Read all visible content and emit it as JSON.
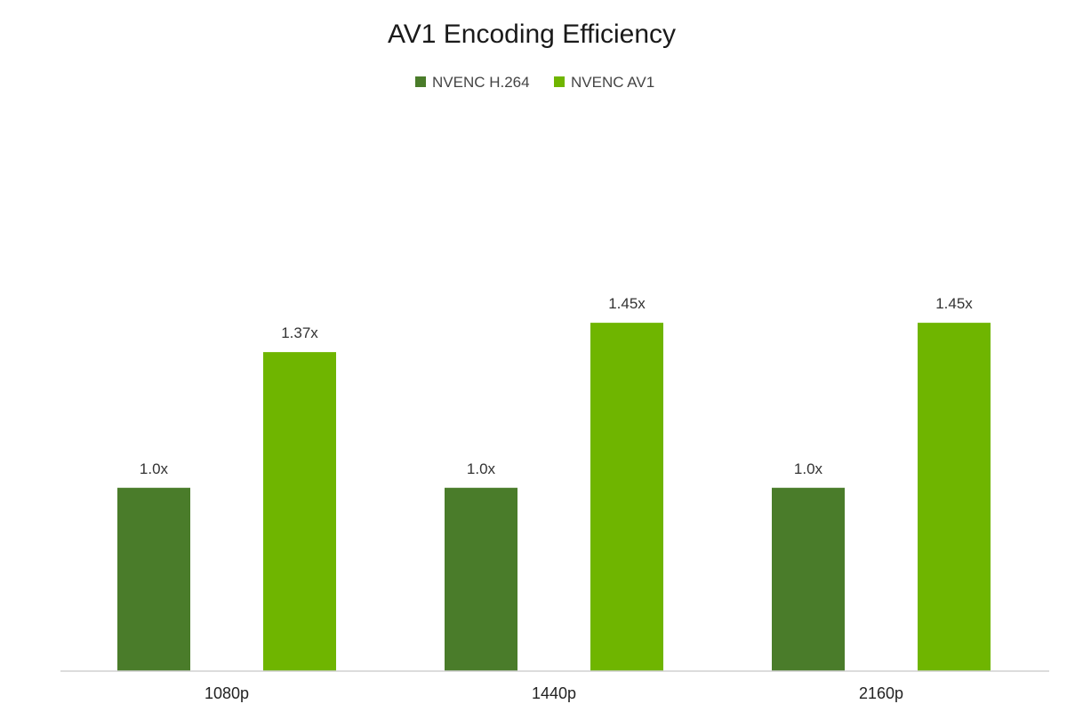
{
  "chart_data": {
    "type": "bar",
    "title": "AV1 Encoding Efficiency",
    "xlabel": "",
    "ylabel": "",
    "categories": [
      "1080p",
      "1440p",
      "2160p"
    ],
    "series": [
      {
        "name": "NVENC H.264",
        "color": "#4a7c2a",
        "values": [
          1.0,
          1.0,
          1.0
        ],
        "labels": [
          "1.0x",
          "1.0x",
          "1.0x"
        ]
      },
      {
        "name": "NVENC AV1",
        "color": "#6fb500",
        "values": [
          1.37,
          1.45,
          1.45
        ],
        "labels": [
          "1.37x",
          "1.45x",
          "1.45x"
        ]
      }
    ],
    "ylim": [
      0.5,
      1.5
    ],
    "grid": false,
    "legend_position": "top-center"
  }
}
